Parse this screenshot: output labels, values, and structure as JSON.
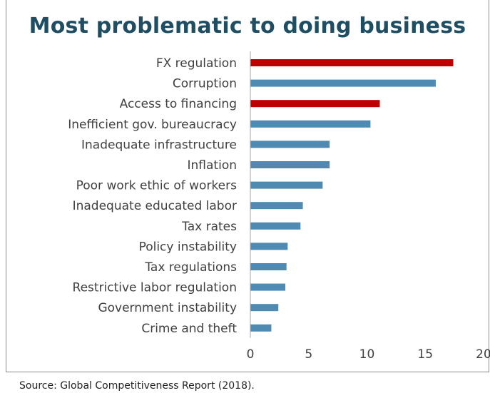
{
  "colors": {
    "title": "#1f4e63",
    "bar_default": "#4e8ab1",
    "bar_highlight": "#c00000",
    "axis": "#a6a6a6",
    "label": "#404040"
  },
  "chart_data": {
    "type": "bar",
    "orientation": "horizontal",
    "title": "Most problematic to doing business",
    "categories": [
      "FX regulation",
      "Corruption",
      "Access to financing",
      "Inefficient gov. bureaucracy",
      "Inadequate infrastructure",
      "Inflation",
      "Poor work ethic of workers",
      "Inadequate educated labor",
      "Tax rates",
      "Policy instability",
      "Tax regulations",
      "Restrictive labor regulation",
      "Government instability",
      "Crime and theft"
    ],
    "values": [
      17.4,
      15.9,
      11.1,
      10.3,
      6.8,
      6.8,
      6.2,
      4.5,
      4.3,
      3.2,
      3.1,
      3.0,
      2.4,
      1.8
    ],
    "highlighted": [
      "FX regulation",
      "Access to financing"
    ],
    "xlim": [
      0,
      20
    ],
    "xticks": [
      "0",
      "5",
      "10",
      "15",
      "20"
    ],
    "xlabel": "",
    "ylabel": "",
    "grid": false,
    "legend": "none"
  },
  "source": "Source: Global Competitiveness Report (2018)."
}
